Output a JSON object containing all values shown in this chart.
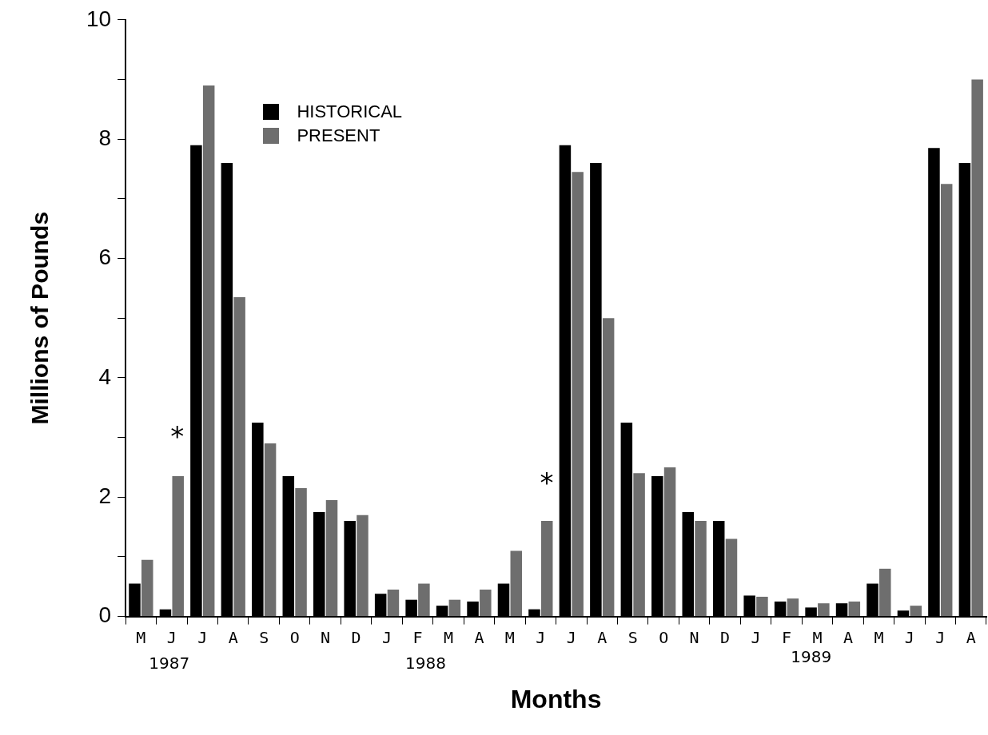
{
  "chart_data": {
    "type": "bar",
    "xlabel": "Months",
    "ylabel": "Millions of Pounds",
    "categories": [
      "M",
      "J",
      "J",
      "A",
      "S",
      "O",
      "N",
      "D",
      "J",
      "F",
      "M",
      "A",
      "M",
      "J",
      "J",
      "A",
      "S",
      "O",
      "N",
      "D",
      "J",
      "F",
      "M",
      "A",
      "M",
      "J",
      "J",
      "A"
    ],
    "series": [
      {
        "name": "HISTORICAL",
        "color": "#000000",
        "values": [
          0.55,
          0.12,
          7.9,
          7.6,
          3.25,
          2.35,
          1.75,
          1.6,
          0.38,
          0.28,
          0.18,
          0.25,
          0.55,
          0.12,
          7.9,
          7.6,
          3.25,
          2.35,
          1.75,
          1.6,
          0.35,
          0.25,
          0.15,
          0.22,
          0.55,
          0.1,
          7.85,
          7.6
        ]
      },
      {
        "name": "PRESENT",
        "color": "#6e6e6e",
        "values": [
          0.95,
          2.35,
          8.9,
          5.35,
          2.9,
          2.15,
          1.95,
          1.7,
          0.45,
          0.55,
          0.28,
          0.45,
          1.1,
          1.6,
          7.45,
          5.0,
          2.4,
          2.5,
          1.6,
          1.3,
          0.33,
          0.3,
          0.22,
          0.25,
          0.8,
          0.18,
          7.25,
          9.0
        ]
      }
    ],
    "ylim": [
      0,
      10
    ],
    "yticks": [
      0,
      {
        "value": 1,
        "label": null
      },
      2,
      {
        "value": 3,
        "label": null
      },
      4,
      {
        "value": 5,
        "label": null
      },
      6,
      {
        "value": 7,
        "label": null
      },
      8,
      {
        "value": 9,
        "label": null
      },
      10
    ],
    "grid": false,
    "legend": "top left",
    "annotations": [
      "*",
      "*",
      "1987",
      "1988",
      "1989"
    ]
  }
}
